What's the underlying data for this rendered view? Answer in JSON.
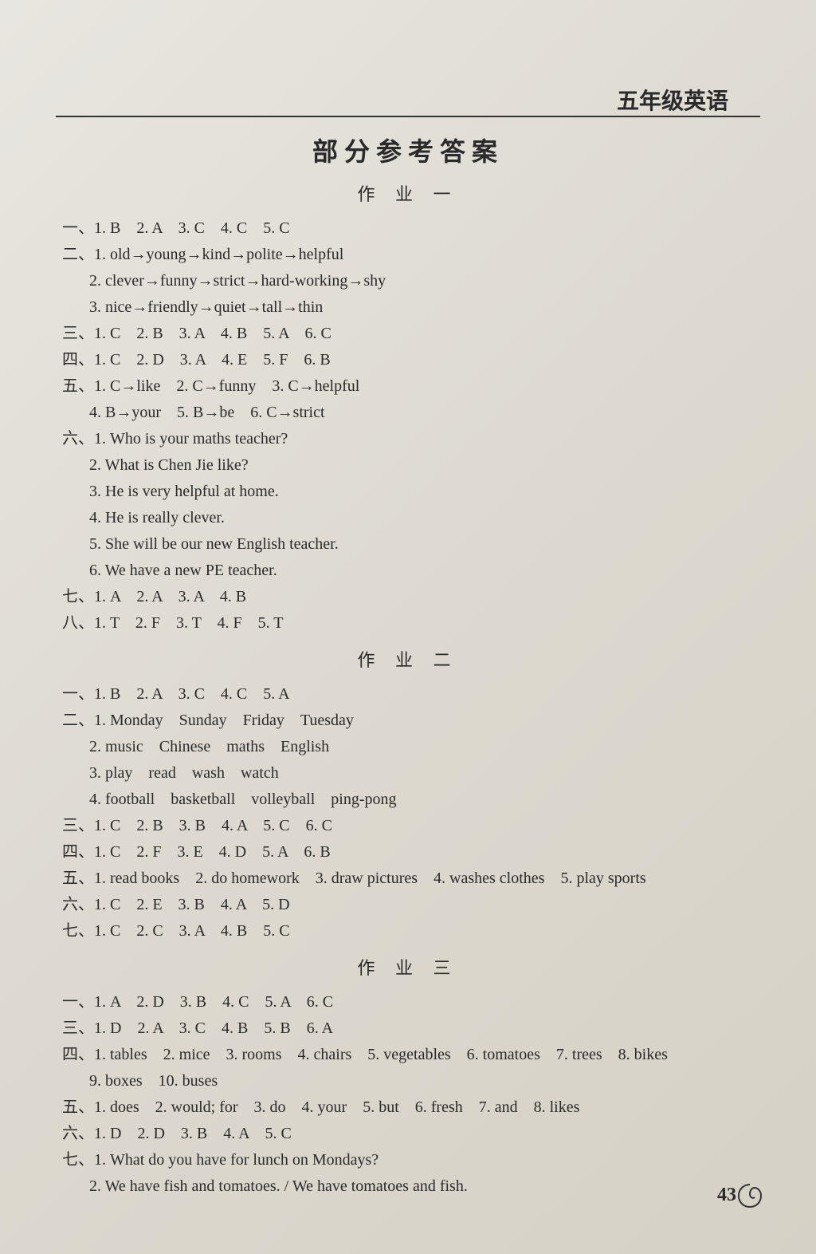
{
  "header_title": "五年级英语",
  "main_title": "部分参考答案",
  "page_number": "43",
  "background_color": "#ddd9d0",
  "text_color": "#2a2a2a",
  "title_fontsize": 32,
  "body_fontsize": 20,
  "sections": [
    {
      "title": "作 业 一",
      "lines": [
        "一、1. B　2. A　3. C　4. C　5. C",
        "二、1. old→young→kind→polite→helpful",
        "    2. clever→funny→strict→hard-working→shy",
        "    3. nice→friendly→quiet→tall→thin",
        "三、1. C　2. B　3. A　4. B　5. A　6. C",
        "四、1. C　2. D　3. A　4. E　5. F　6. B",
        "五、1. C→like　2. C→funny　3. C→helpful",
        "    4. B→your　5. B→be　6. C→strict",
        "六、1. Who is your maths teacher?",
        "    2. What is Chen Jie like?",
        "    3. He is very helpful at home.",
        "    4. He is really clever.",
        "    5. She will be our new English teacher.",
        "    6. We have a new PE teacher.",
        "七、1. A　2. A　3. A　4. B",
        "八、1. T　2. F　3. T　4. F　5. T"
      ]
    },
    {
      "title": "作 业 二",
      "lines": [
        "一、1. B　2. A　3. C　4. C　5. A",
        "二、1. Monday　Sunday　Friday　Tuesday",
        "    2. music　Chinese　maths　English",
        "    3. play　read　wash　watch",
        "    4. football　basketball　volleyball　ping-pong",
        "三、1. C　2. B　3. B　4. A　5. C　6. C",
        "四、1. C　2. F　3. E　4. D　5. A　6. B",
        "五、1. read books　2. do homework　3. draw pictures　4. washes clothes　5. play sports",
        "六、1. C　2. E　3. B　4. A　5. D",
        "七、1. C　2. C　3. A　4. B　5. C"
      ]
    },
    {
      "title": "作 业 三",
      "lines": [
        "一、1. A　2. D　3. B　4. C　5. A　6. C",
        "三、1. D　2. A　3. C　4. B　5. B　6. A",
        "四、1. tables　2. mice　3. rooms　4. chairs　5. vegetables　6. tomatoes　7. trees　8. bikes",
        "    9. boxes　10. buses",
        "五、1. does　2. would; for　3. do　4. your　5. but　6. fresh　7. and　8. likes",
        "六、1. D　2. D　3. B　4. A　5. C",
        "七、1. What do you have for lunch on Mondays?",
        "    2. We have fish and tomatoes. / We have tomatoes and fish."
      ]
    }
  ]
}
